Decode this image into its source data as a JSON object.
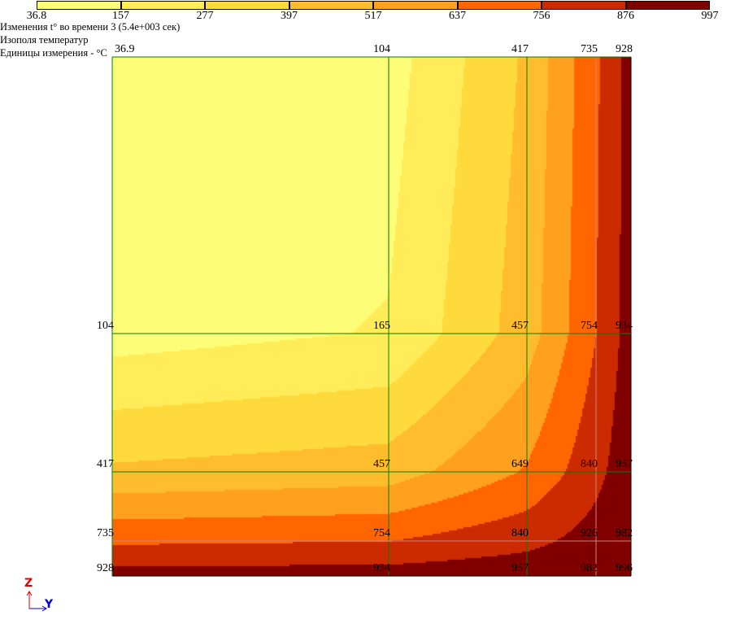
{
  "legend": {
    "levels": [
      "36.8",
      "157",
      "277",
      "397",
      "517",
      "637",
      "756",
      "876",
      "997"
    ],
    "colors": [
      "#fdfd78",
      "#ffec58",
      "#ffda3c",
      "#ffbc2c",
      "#ffa01e",
      "#ff6600",
      "#cc2a00",
      "#800000"
    ]
  },
  "info": {
    "title": "Изменения t° во времени 3 (5.4e+003 сек)",
    "subtitle": "Изополя температур",
    "units": "Единицы измерения - °C"
  },
  "axes": {
    "vertical": "Z",
    "horizontal": "Y"
  },
  "chart_data": {
    "type": "heatmap",
    "title": "Изополя температур",
    "grid_lines_color": "#008000",
    "nodes": [
      [
        36.9,
        104,
        417,
        735,
        928
      ],
      [
        104,
        165,
        457,
        754,
        934
      ],
      [
        417,
        457,
        649,
        840,
        957
      ],
      [
        735,
        754,
        840,
        926,
        982
      ],
      [
        928,
        934,
        957,
        982,
        996
      ]
    ],
    "node_labels": [
      [
        "36.9",
        "104",
        "417",
        "735",
        "928"
      ],
      [
        "104",
        "165",
        "457",
        "754",
        "934"
      ],
      [
        "417",
        "457",
        "649",
        "840",
        "957"
      ],
      [
        "735",
        "754",
        "840",
        "926",
        "982"
      ],
      [
        "928",
        "934",
        "957",
        "982",
        "996"
      ]
    ]
  }
}
